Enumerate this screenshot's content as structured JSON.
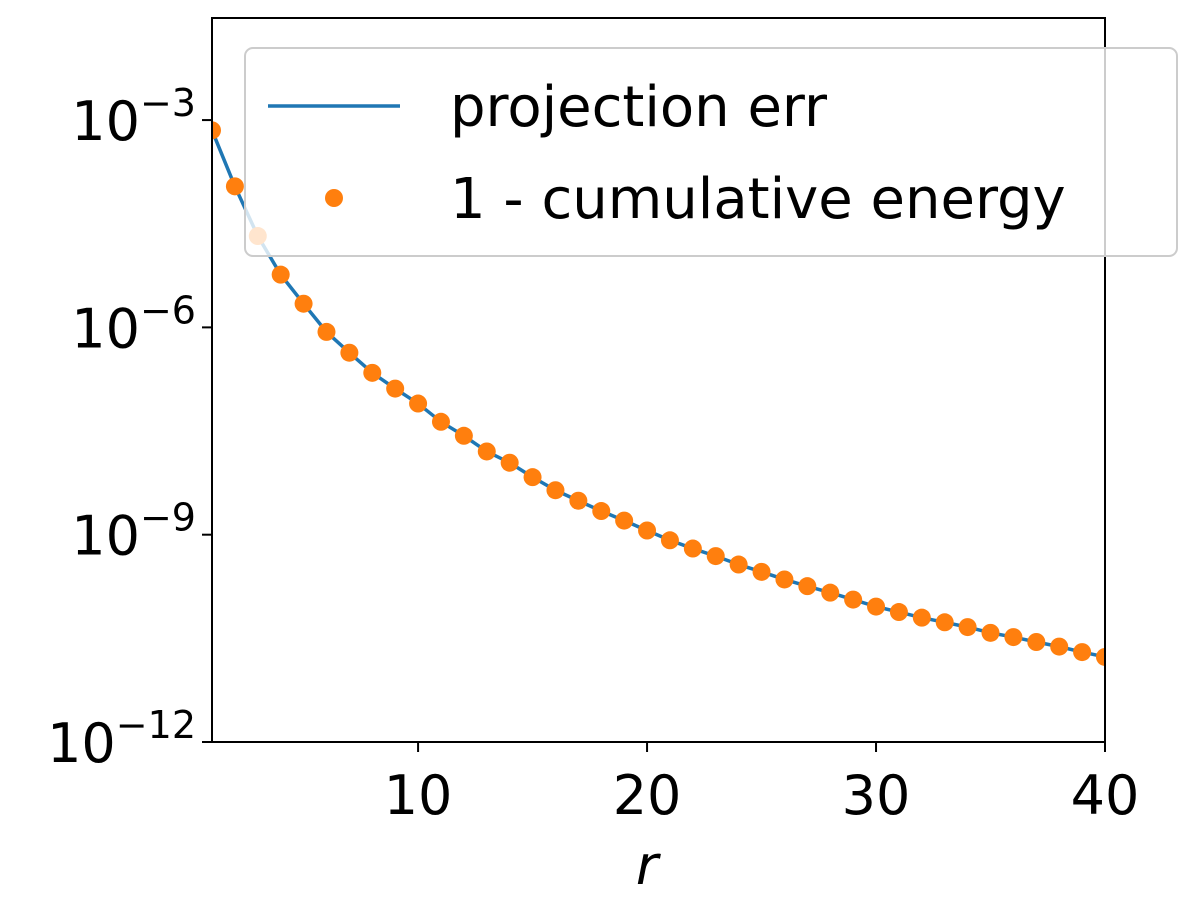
{
  "chart_data": {
    "type": "line",
    "title": "",
    "xlabel": "r",
    "ylabel": "",
    "xlim": [
      1,
      40
    ],
    "ylim": [
      1e-12,
      0.03
    ],
    "yscale": "log",
    "grid": false,
    "legend_position": "top-right",
    "x_ticks": [
      {
        "value": 10,
        "label": "10"
      },
      {
        "value": 20,
        "label": "20"
      },
      {
        "value": 30,
        "label": "30"
      },
      {
        "value": 40,
        "label": "40"
      }
    ],
    "y_ticks": [
      {
        "value": 0.001,
        "base": "10",
        "exp": "−3"
      },
      {
        "value": 1e-06,
        "base": "10",
        "exp": "−6"
      },
      {
        "value": 1e-09,
        "base": "10",
        "exp": "−9"
      },
      {
        "value": 1e-12,
        "base": "10",
        "exp": "−12"
      }
    ],
    "x": [
      1,
      2,
      3,
      4,
      5,
      6,
      7,
      8,
      9,
      10,
      11,
      12,
      13,
      14,
      15,
      16,
      17,
      18,
      19,
      20,
      21,
      22,
      23,
      24,
      25,
      26,
      27,
      28,
      29,
      30,
      31,
      32,
      33,
      34,
      35,
      36,
      37,
      38,
      39,
      40
    ],
    "series": [
      {
        "name": "projection err",
        "style": "line",
        "color": "#1f77b4",
        "values": [
          0.00071,
          0.00011,
          2.1e-05,
          5.8e-06,
          2.2e-06,
          8.6e-07,
          4.3e-07,
          2.2e-07,
          1.3e-07,
          7.9e-08,
          4.3e-08,
          2.7e-08,
          1.6e-08,
          1.1e-08,
          6.8e-09,
          4.4e-09,
          3.1e-09,
          2.2e-09,
          1.6e-09,
          1.15e-09,
          8.3e-10,
          6.3e-10,
          4.9e-10,
          3.7e-10,
          2.9e-10,
          2.25e-10,
          1.8e-10,
          1.45e-10,
          1.15e-10,
          9.1e-11,
          7.6e-11,
          6.3e-11,
          5.4e-11,
          4.6e-11,
          3.8e-11,
          3.3e-11,
          2.8e-11,
          2.4e-11,
          2e-11,
          1.7e-11
        ]
      },
      {
        "name": "1 - cumulative energy",
        "style": "markers",
        "color": "#ff7f0e",
        "values": [
          0.00071,
          0.00011,
          2.1e-05,
          5.8e-06,
          2.2e-06,
          8.6e-07,
          4.3e-07,
          2.2e-07,
          1.3e-07,
          7.9e-08,
          4.3e-08,
          2.7e-08,
          1.6e-08,
          1.1e-08,
          6.8e-09,
          4.4e-09,
          3.1e-09,
          2.2e-09,
          1.6e-09,
          1.15e-09,
          8.3e-10,
          6.3e-10,
          4.9e-10,
          3.7e-10,
          2.9e-10,
          2.25e-10,
          1.8e-10,
          1.45e-10,
          1.15e-10,
          9.1e-11,
          7.6e-11,
          6.3e-11,
          5.4e-11,
          4.6e-11,
          3.8e-11,
          3.3e-11,
          2.8e-11,
          2.4e-11,
          2e-11,
          1.7e-11
        ]
      }
    ]
  }
}
